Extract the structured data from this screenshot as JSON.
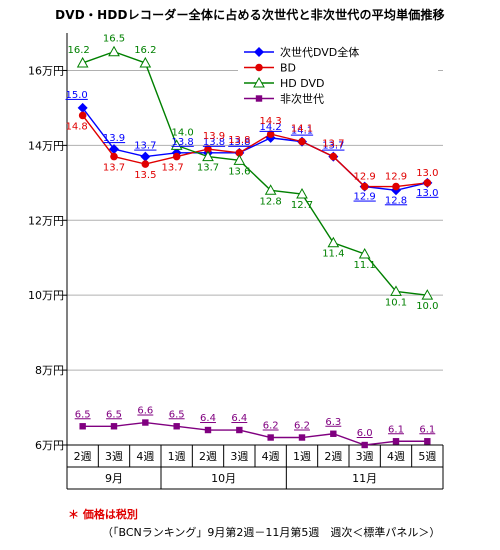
{
  "chart_data": {
    "type": "line",
    "title": "DVD・HDDレコーダー全体に占める次世代と非次世代の平均単価推移",
    "yaxis": {
      "ticks": [
        6,
        8,
        10,
        12,
        14,
        16
      ],
      "tick_labels": [
        "6万円",
        "8万円",
        "10万円",
        "12万円",
        "14万円",
        "16万円"
      ],
      "ylim": [
        6,
        17
      ]
    },
    "categories": [
      "2週",
      "3週",
      "4週",
      "1週",
      "2週",
      "3週",
      "4週",
      "1週",
      "2週",
      "3週",
      "4週",
      "5週"
    ],
    "months": [
      {
        "label": "9月",
        "span": 3
      },
      {
        "label": "10月",
        "span": 4
      },
      {
        "label": "11月",
        "span": 5
      }
    ],
    "series": [
      {
        "name": "次世代DVD全体",
        "color": "#0000ff",
        "marker": "diamond",
        "values": [
          15.0,
          13.9,
          13.7,
          13.8,
          13.8,
          13.8,
          14.2,
          14.1,
          13.7,
          12.9,
          12.8,
          13.0
        ],
        "labels": [
          "15.0",
          "13.9",
          "13.7",
          "13.8",
          "13.8",
          "13.8",
          "14.2",
          "14.1",
          "13.7",
          "12.9",
          "12.8",
          "13.0"
        ]
      },
      {
        "name": "BD",
        "color": "#e00000",
        "marker": "circle",
        "values": [
          14.8,
          13.7,
          13.5,
          13.7,
          13.9,
          13.8,
          14.3,
          14.1,
          13.7,
          12.9,
          12.9,
          13.0
        ],
        "labels": [
          "14.8",
          "13.7",
          "13.5",
          "13.7",
          "13.9",
          "13.8",
          "14.3",
          "14.1",
          "13.7",
          "12.9",
          "12.9",
          "13.0"
        ]
      },
      {
        "name": "HD DVD",
        "color": "#008000",
        "marker": "triangle",
        "values": [
          16.2,
          16.5,
          16.2,
          14.0,
          13.7,
          13.6,
          12.8,
          12.7,
          11.4,
          11.1,
          10.1,
          10.0
        ],
        "labels": [
          "16.2",
          "16.5",
          "16.2",
          "14.0",
          "13.7",
          "13.6",
          "12.8",
          "12.7",
          "11.4",
          "11.1",
          "10.1",
          "10.0"
        ]
      },
      {
        "name": "非次世代",
        "color": "#800080",
        "marker": "square",
        "values": [
          6.5,
          6.5,
          6.6,
          6.5,
          6.4,
          6.4,
          6.2,
          6.2,
          6.3,
          6.0,
          6.1,
          6.1
        ],
        "labels": [
          "6.5",
          "6.5",
          "6.6",
          "6.5",
          "6.4",
          "6.4",
          "6.2",
          "6.2",
          "6.3",
          "6.0",
          "6.1",
          "6.1"
        ]
      }
    ],
    "legend_position": "top-right",
    "grid": true
  },
  "footnote": "＊ 価格は税別",
  "source": "（「BCNランキング」9月第2週－11月第5週　週次＜標準パネル＞）"
}
